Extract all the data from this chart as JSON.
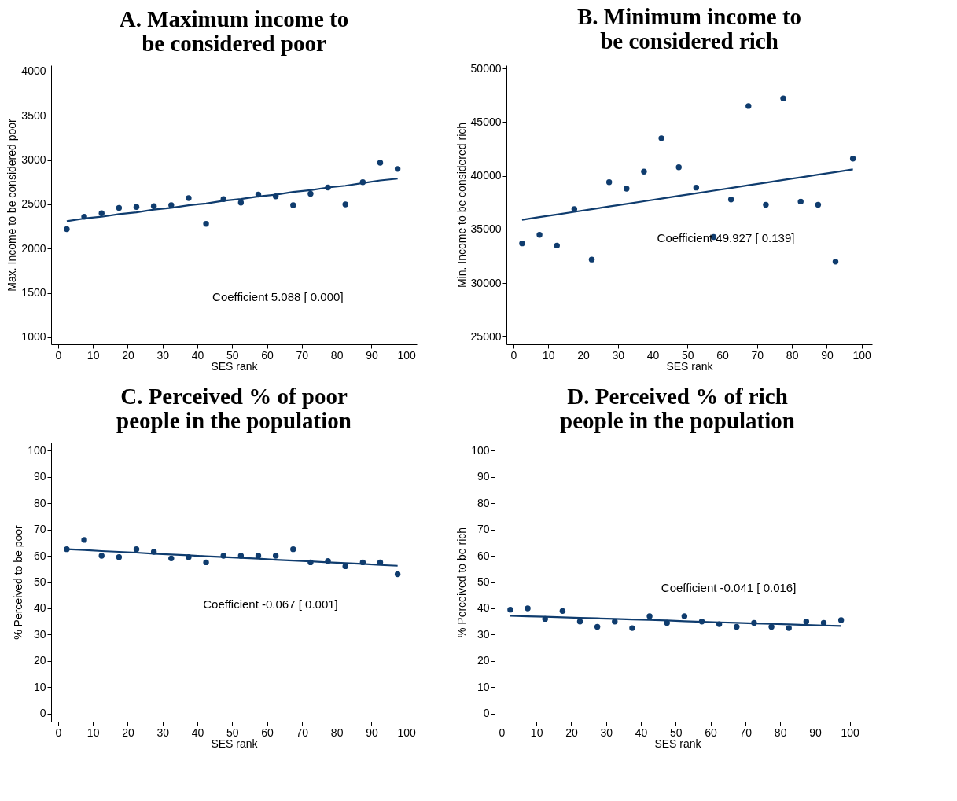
{
  "chart_data": [
    {
      "type": "scatter",
      "title": "A. Maximum income to be considered poor",
      "xlabel": "SES rank",
      "ylabel": "Max. Income to be considered poor",
      "x": [
        2.5,
        7.5,
        12.5,
        17.5,
        22.5,
        27.5,
        32.5,
        37.5,
        42.5,
        47.5,
        52.5,
        57.5,
        62.5,
        67.5,
        72.5,
        77.5,
        82.5,
        87.5,
        92.5,
        97.5
      ],
      "series": [
        {
          "marker": "circle",
          "color": "#0f3c6e",
          "values": [
            2220,
            2360,
            2400,
            2460,
            2470,
            2480,
            2490,
            2570,
            2280,
            2560,
            2520,
            2610,
            2590,
            2490,
            2620,
            2690,
            2500,
            2750,
            2970,
            2900
          ]
        },
        {
          "type": "line",
          "color": "#0f3c6e",
          "values": [
            2310,
            2340,
            2360,
            2390,
            2410,
            2440,
            2460,
            2490,
            2510,
            2540,
            2560,
            2590,
            2610,
            2640,
            2660,
            2690,
            2710,
            2740,
            2770,
            2790
          ]
        }
      ],
      "xlim": [
        -2,
        103
      ],
      "xticks": [
        0,
        10,
        20,
        30,
        40,
        50,
        60,
        70,
        80,
        90,
        100
      ],
      "ylim": [
        920,
        4070
      ],
      "yticks": [
        1000,
        1500,
        2000,
        2500,
        3000,
        3500,
        4000
      ],
      "annotations": [
        "Coefficient  5.088 [ 0.000]"
      ]
    },
    {
      "type": "scatter",
      "title": "B. Minimum income to be considered rich",
      "xlabel": "SES rank",
      "ylabel": "Min. Income to be considered rich",
      "x": [
        2.5,
        7.5,
        12.5,
        17.5,
        22.5,
        27.5,
        32.5,
        37.5,
        42.5,
        47.5,
        52.5,
        57.5,
        62.5,
        67.5,
        72.5,
        77.5,
        82.5,
        87.5,
        92.5,
        97.5
      ],
      "series": [
        {
          "marker": "circle",
          "color": "#0f3c6e",
          "values": [
            33700,
            34500,
            33500,
            36900,
            32200,
            39400,
            38800,
            40400,
            43500,
            40800,
            38900,
            34300,
            37800,
            46500,
            37300,
            47200,
            37600,
            37300,
            32000,
            41600
          ]
        },
        {
          "type": "line",
          "color": "#0f3c6e",
          "values": [
            35900,
            36150,
            36390,
            36640,
            36890,
            37140,
            37380,
            37630,
            37880,
            38130,
            38370,
            38620,
            38870,
            39120,
            39360,
            39610,
            39860,
            40110,
            40350,
            40600
          ]
        }
      ],
      "xlim": [
        -2,
        103
      ],
      "xticks": [
        0,
        10,
        20,
        30,
        40,
        50,
        60,
        70,
        80,
        90,
        100
      ],
      "ylim": [
        24300,
        50300
      ],
      "yticks": [
        25000,
        30000,
        35000,
        40000,
        45000,
        50000
      ],
      "annotations": [
        "Coefficient 49.927 [ 0.139]"
      ]
    },
    {
      "type": "scatter",
      "title": "C. Perceived % of poor people in the population",
      "xlabel": "SES rank",
      "ylabel": "% Perceived to be poor",
      "x": [
        2.5,
        7.5,
        12.5,
        17.5,
        22.5,
        27.5,
        32.5,
        37.5,
        42.5,
        47.5,
        52.5,
        57.5,
        62.5,
        67.5,
        72.5,
        77.5,
        82.5,
        87.5,
        92.5,
        97.5
      ],
      "series": [
        {
          "marker": "circle",
          "color": "#0f3c6e",
          "values": [
            62.5,
            66,
            60,
            59.5,
            62.5,
            61.5,
            59,
            59.5,
            57.5,
            60,
            60,
            60,
            60,
            62.5,
            57.5,
            58,
            56,
            57.5,
            57.5,
            53
          ]
        },
        {
          "type": "line",
          "color": "#0f3c6e",
          "values": [
            62.5,
            62.2,
            61.8,
            61.5,
            61.2,
            60.8,
            60.5,
            60.2,
            59.8,
            59.5,
            59.2,
            58.9,
            58.5,
            58.2,
            57.9,
            57.5,
            57.2,
            56.9,
            56.5,
            56.2
          ]
        }
      ],
      "xlim": [
        -2,
        103
      ],
      "xticks": [
        0,
        10,
        20,
        30,
        40,
        50,
        60,
        70,
        80,
        90,
        100
      ],
      "ylim": [
        -3,
        103
      ],
      "yticks": [
        0,
        10,
        20,
        30,
        40,
        50,
        60,
        70,
        80,
        90,
        100
      ],
      "annotations": [
        "Coefficient -0.067 [ 0.001]"
      ]
    },
    {
      "type": "scatter",
      "title": "D. Perceived % of rich people in the population",
      "xlabel": "SES rank",
      "ylabel": "% Perceived to be rich",
      "x": [
        2.5,
        7.5,
        12.5,
        17.5,
        22.5,
        27.5,
        32.5,
        37.5,
        42.5,
        47.5,
        52.5,
        57.5,
        62.5,
        67.5,
        72.5,
        77.5,
        82.5,
        87.5,
        92.5,
        97.5
      ],
      "series": [
        {
          "marker": "circle",
          "color": "#0f3c6e",
          "values": [
            39.5,
            40,
            36,
            39,
            35,
            33,
            35,
            32.5,
            37,
            34.5,
            37,
            35,
            34,
            33,
            34.5,
            33,
            32.5,
            35,
            34.5,
            35.5
          ]
        },
        {
          "type": "line",
          "color": "#0f3c6e",
          "values": [
            37.2,
            37.0,
            36.8,
            36.6,
            36.4,
            36.2,
            36.0,
            35.8,
            35.6,
            35.4,
            35.1,
            34.9,
            34.7,
            34.5,
            34.3,
            34.1,
            33.9,
            33.7,
            33.5,
            33.3
          ]
        }
      ],
      "xlim": [
        -2,
        103
      ],
      "xticks": [
        0,
        10,
        20,
        30,
        40,
        50,
        60,
        70,
        80,
        90,
        100
      ],
      "ylim": [
        -3,
        103
      ],
      "yticks": [
        0,
        10,
        20,
        30,
        40,
        50,
        60,
        70,
        80,
        90,
        100
      ],
      "annotations": [
        "Coefficient -0.041 [ 0.016]"
      ]
    }
  ]
}
